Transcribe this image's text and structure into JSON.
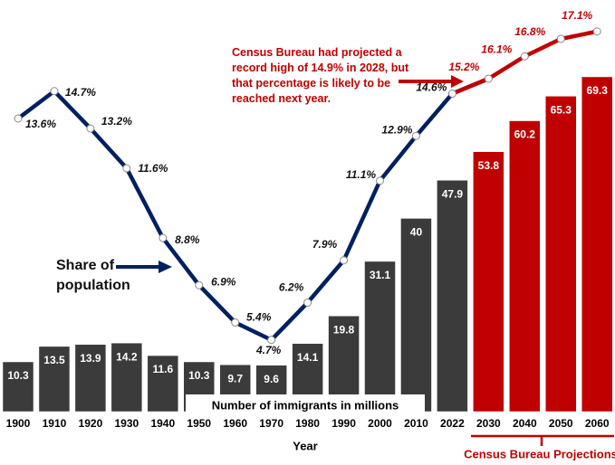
{
  "chart_data": {
    "type": "combo",
    "categories": [
      "1900",
      "1910",
      "1920",
      "1930",
      "1940",
      "1950",
      "1960",
      "1970",
      "1980",
      "1990",
      "2000",
      "2010",
      "2022",
      "2030",
      "2040",
      "2050",
      "2060"
    ],
    "series": [
      {
        "name": "Number of immigrants in millions",
        "type": "bar",
        "values": [
          10.3,
          13.5,
          13.9,
          14.2,
          11.6,
          10.3,
          9.7,
          9.6,
          14.1,
          19.8,
          31.1,
          40,
          47.9,
          53.8,
          60.2,
          65.3,
          69.3
        ],
        "colors": [
          "#3b3b3b",
          "#3b3b3b",
          "#3b3b3b",
          "#3b3b3b",
          "#3b3b3b",
          "#3b3b3b",
          "#3b3b3b",
          "#3b3b3b",
          "#3b3b3b",
          "#3b3b3b",
          "#3b3b3b",
          "#3b3b3b",
          "#3b3b3b",
          "#c00000",
          "#c00000",
          "#c00000",
          "#c00000"
        ]
      },
      {
        "name": "Share of population",
        "type": "line",
        "axis": "y2",
        "values": [
          13.6,
          14.7,
          13.2,
          11.6,
          8.8,
          6.9,
          5.4,
          4.7,
          6.2,
          7.9,
          11.1,
          12.9,
          14.6,
          15.2,
          16.1,
          16.8,
          17.1
        ],
        "value_labels": [
          "13.6%",
          "14.7%",
          "13.2%",
          "11.6%",
          "8.8%",
          "6.9%",
          "5.4%",
          "4.7%",
          "6.2%",
          "7.9%",
          "11.1%",
          "12.9%",
          "14.6%",
          "15.2%",
          "16.1%",
          "16.8%",
          "17.1%"
        ],
        "colors": [
          "#002060",
          "#002060",
          "#002060",
          "#002060",
          "#002060",
          "#002060",
          "#002060",
          "#002060",
          "#002060",
          "#002060",
          "#002060",
          "#002060",
          "#002060",
          "#c00000",
          "#c00000",
          "#c00000",
          "#c00000"
        ]
      }
    ],
    "x_label": "Year",
    "annotation": "Census Bureau had projected a record high of 14.9% in 2028, but that percentage is likely to be reached next year.",
    "projection_label": "Census Bureau Projections"
  }
}
